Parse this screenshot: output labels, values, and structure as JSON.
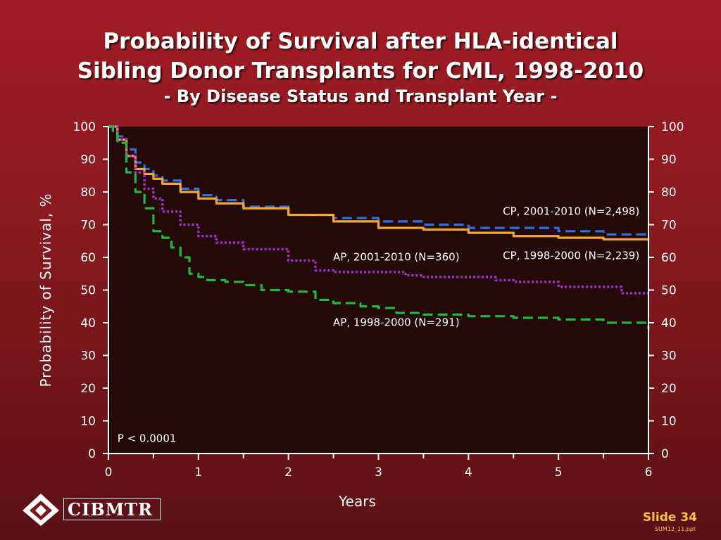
{
  "slide": {
    "title_line1": "Probability of Survival after HLA-identical",
    "title_line2": "Sibling Donor Transplants for CML, 1998-2010",
    "title_line3": "- By Disease Status and Transplant Year -",
    "logo_text": "CIBMTR",
    "logo_reg": "®",
    "slide_number": "Slide 34",
    "file_ref": "SUM12_11.ppt"
  },
  "colors": {
    "plot_background": "#230a07",
    "axis": "#ffffff",
    "cp_2001_2010": "#2f6fe8",
    "cp_1998_2000": "#f0a830",
    "ap_2001_2010": "#a62ad6",
    "ap_1998_2000": "#22b83a",
    "slide_number": "#f4c542"
  },
  "chart_data": {
    "type": "line",
    "xlabel": "Years",
    "ylabel": "Probability of Survival, %",
    "xlim": [
      0,
      6
    ],
    "ylim": [
      0,
      100
    ],
    "xticks": [
      0,
      1,
      2,
      3,
      4,
      5,
      6
    ],
    "yticks": [
      0,
      10,
      20,
      30,
      40,
      50,
      60,
      70,
      80,
      90,
      100
    ],
    "annotation": "P < 0.0001",
    "series": [
      {
        "name": "CP, 2001-2010 (N=2,498)",
        "key": "cp_2001_2010",
        "style": "dashed",
        "x": [
          0,
          0.1,
          0.2,
          0.3,
          0.4,
          0.5,
          0.6,
          0.8,
          1.0,
          1.2,
          1.5,
          2.0,
          2.5,
          3.0,
          3.5,
          4.0,
          4.5,
          5.0,
          5.5,
          6.0
        ],
        "y": [
          100,
          97,
          93,
          89,
          87,
          85,
          83.5,
          81,
          79,
          77.5,
          75.5,
          73,
          72,
          71,
          70,
          69,
          69,
          68,
          67,
          66.5
        ]
      },
      {
        "name": "CP, 1998-2000 (N=2,239)",
        "key": "cp_1998_2000",
        "style": "solid",
        "x": [
          0,
          0.1,
          0.2,
          0.3,
          0.4,
          0.5,
          0.6,
          0.8,
          1.0,
          1.2,
          1.5,
          2.0,
          2.5,
          3.0,
          3.5,
          4.0,
          4.5,
          5.0,
          5.5,
          6.0
        ],
        "y": [
          100,
          96,
          91,
          87,
          85.5,
          84,
          82.5,
          80,
          78,
          76.5,
          75,
          73,
          71,
          69,
          68.5,
          67.5,
          66.5,
          66,
          65.5,
          65
        ]
      },
      {
        "name": "AP, 2001-2010 (N=360)",
        "key": "ap_2001_2010",
        "style": "dotted",
        "x": [
          0,
          0.1,
          0.2,
          0.3,
          0.4,
          0.5,
          0.6,
          0.8,
          1.0,
          1.2,
          1.5,
          2.0,
          2.3,
          2.5,
          3.0,
          3.3,
          3.5,
          4.0,
          4.3,
          4.5,
          5.0,
          5.5,
          5.7,
          6.0
        ],
        "y": [
          100,
          96,
          91,
          86,
          81,
          78,
          74,
          70,
          66.5,
          64.5,
          62.5,
          59,
          56,
          55.5,
          55.5,
          54.5,
          54,
          54,
          53,
          52.5,
          51,
          51,
          49,
          49
        ]
      },
      {
        "name": "AP, 1998-2000 (N=291)",
        "key": "ap_1998_2000",
        "style": "dashed",
        "x": [
          0,
          0.05,
          0.1,
          0.2,
          0.3,
          0.4,
          0.5,
          0.6,
          0.7,
          0.8,
          0.9,
          1.0,
          1.1,
          1.3,
          1.5,
          1.7,
          2.0,
          2.3,
          2.5,
          2.8,
          3.0,
          3.2,
          3.5,
          4.0,
          4.5,
          5.0,
          5.5,
          6.0
        ],
        "y": [
          100,
          98,
          95,
          86,
          80,
          75,
          68,
          66,
          63,
          60,
          55,
          54,
          53,
          52.5,
          51.5,
          50,
          49.5,
          47,
          46,
          45,
          44.5,
          43,
          42.5,
          42,
          41.5,
          41,
          40,
          38
        ]
      }
    ],
    "labels": [
      {
        "series": "cp_2001_2010",
        "text": "CP, 2001-2010 (N=2,498)"
      },
      {
        "series": "cp_1998_2000",
        "text": "CP, 1998-2000 (N=2,239)"
      },
      {
        "series": "ap_2001_2010",
        "text": "AP, 2001-2010 (N=360)"
      },
      {
        "series": "ap_1998_2000",
        "text": "AP, 1998-2000 (N=291)"
      }
    ]
  }
}
